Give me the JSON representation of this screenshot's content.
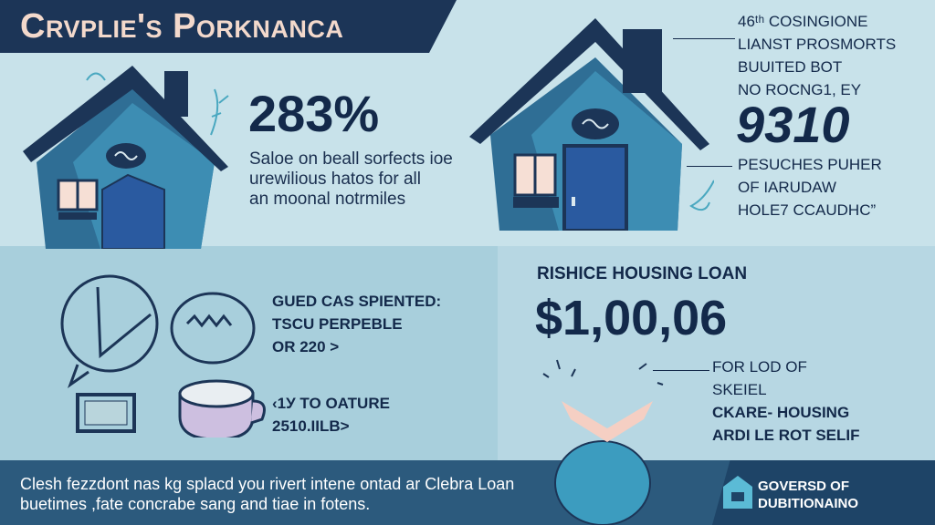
{
  "header": {
    "title": "Crvplie's Porknanca"
  },
  "stat_left": {
    "value": "283%",
    "description": [
      "Saloe on beall sorfects ioe",
      "urewilious hatos for all",
      "an moonal notrmiles"
    ]
  },
  "stat_right": {
    "top_lines": [
      "46ᵗʰ COSINGIONE",
      "LIANST PROSMORTS",
      "BUUITED BOT",
      "NO ROCNG1, EY"
    ],
    "value": "9310",
    "bottom_lines": [
      "PESUCHES PUHER",
      "OF IARUDAW",
      "HOLE7 CCAUDHC”"
    ]
  },
  "lower_left": {
    "item1_lines": [
      "GUED CAS SPIENTED:",
      "TSCU PERPEBLE",
      "OR 220 >"
    ],
    "item2_lines": [
      "‹1У TO OATURE",
      "2510.IILB>"
    ]
  },
  "loan": {
    "heading": "RISHICE HOUSING LOAN",
    "amount": "$1,00,06",
    "lines": [
      "FOR LOD OF",
      "SKEIEL",
      "CKARE- HOUSING",
      "ARDI LE ROT SELIF"
    ]
  },
  "footer": {
    "text_lines": [
      "Clesh fezzdont nas kg splacd you rivert intene ontad ar Clebra Loan",
      "buetimes ,fate concrabe sang and tiae in fotens."
    ],
    "brand_lines": [
      "GOVERSD OF",
      "DUBITIONAINO"
    ]
  },
  "colors": {
    "navy": "#1c3557",
    "house_blue": "#3b87ad",
    "door_blue": "#2a5aa0",
    "accent_peach": "#f3d9cc",
    "footer": "#2c5a7d"
  }
}
